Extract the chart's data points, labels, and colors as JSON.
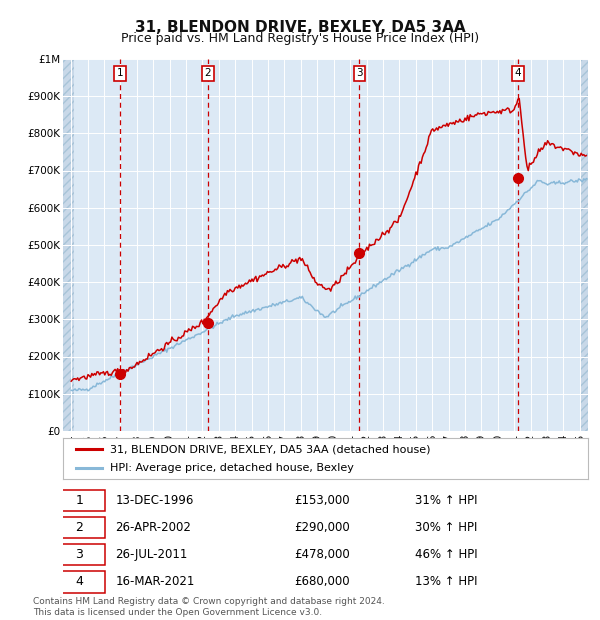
{
  "title": "31, BLENDON DRIVE, BEXLEY, DA5 3AA",
  "subtitle": "Price paid vs. HM Land Registry's House Price Index (HPI)",
  "footer": "Contains HM Land Registry data © Crown copyright and database right 2024.\nThis data is licensed under the Open Government Licence v3.0.",
  "legend_line1": "31, BLENDON DRIVE, BEXLEY, DA5 3AA (detached house)",
  "legend_line2": "HPI: Average price, detached house, Bexley",
  "transactions": [
    {
      "num": 1,
      "date": "13-DEC-1996",
      "price": 153000,
      "pct": "31%",
      "dir": "↑",
      "x_year": 1996.96
    },
    {
      "num": 2,
      "date": "26-APR-2002",
      "price": 290000,
      "pct": "30%",
      "dir": "↑",
      "x_year": 2002.32
    },
    {
      "num": 3,
      "date": "26-JUL-2011",
      "price": 478000,
      "pct": "46%",
      "dir": "↑",
      "x_year": 2011.57
    },
    {
      "num": 4,
      "date": "16-MAR-2021",
      "price": 680000,
      "pct": "13%",
      "dir": "↑",
      "x_year": 2021.21
    }
  ],
  "vline_x": [
    1996.96,
    2002.32,
    2011.57,
    2021.21
  ],
  "ylim": [
    0,
    1000000
  ],
  "xlim": [
    1993.5,
    2025.5
  ],
  "yticks": [
    0,
    100000,
    200000,
    300000,
    400000,
    500000,
    600000,
    700000,
    800000,
    900000,
    1000000
  ],
  "ytick_labels": [
    "£0",
    "£100K",
    "£200K",
    "£300K",
    "£400K",
    "£500K",
    "£600K",
    "£700K",
    "£800K",
    "£900K",
    "£1M"
  ],
  "fig_bg": "#ffffff",
  "plot_bg_color": "#dce9f5",
  "hatch_bg": "#c8d8e8",
  "grid_color": "#ffffff",
  "red_line_color": "#cc0000",
  "blue_line_color": "#88b8d8",
  "dot_color": "#cc0000",
  "vline_color": "#cc0000",
  "title_fontsize": 11,
  "subtitle_fontsize": 9,
  "tick_fontsize": 7.5,
  "legend_fontsize": 8,
  "table_fontsize": 8.5,
  "footer_fontsize": 6.5
}
